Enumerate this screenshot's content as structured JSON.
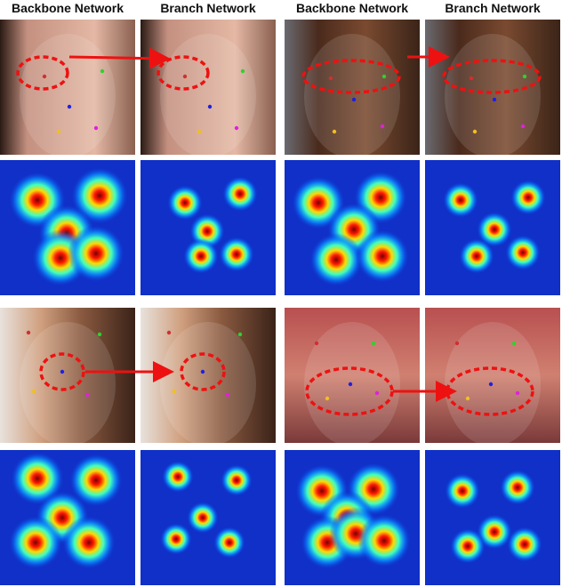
{
  "headers": [
    "Backbone Network",
    "Branch Network",
    "Backbone Network",
    "Branch Network"
  ]
}
